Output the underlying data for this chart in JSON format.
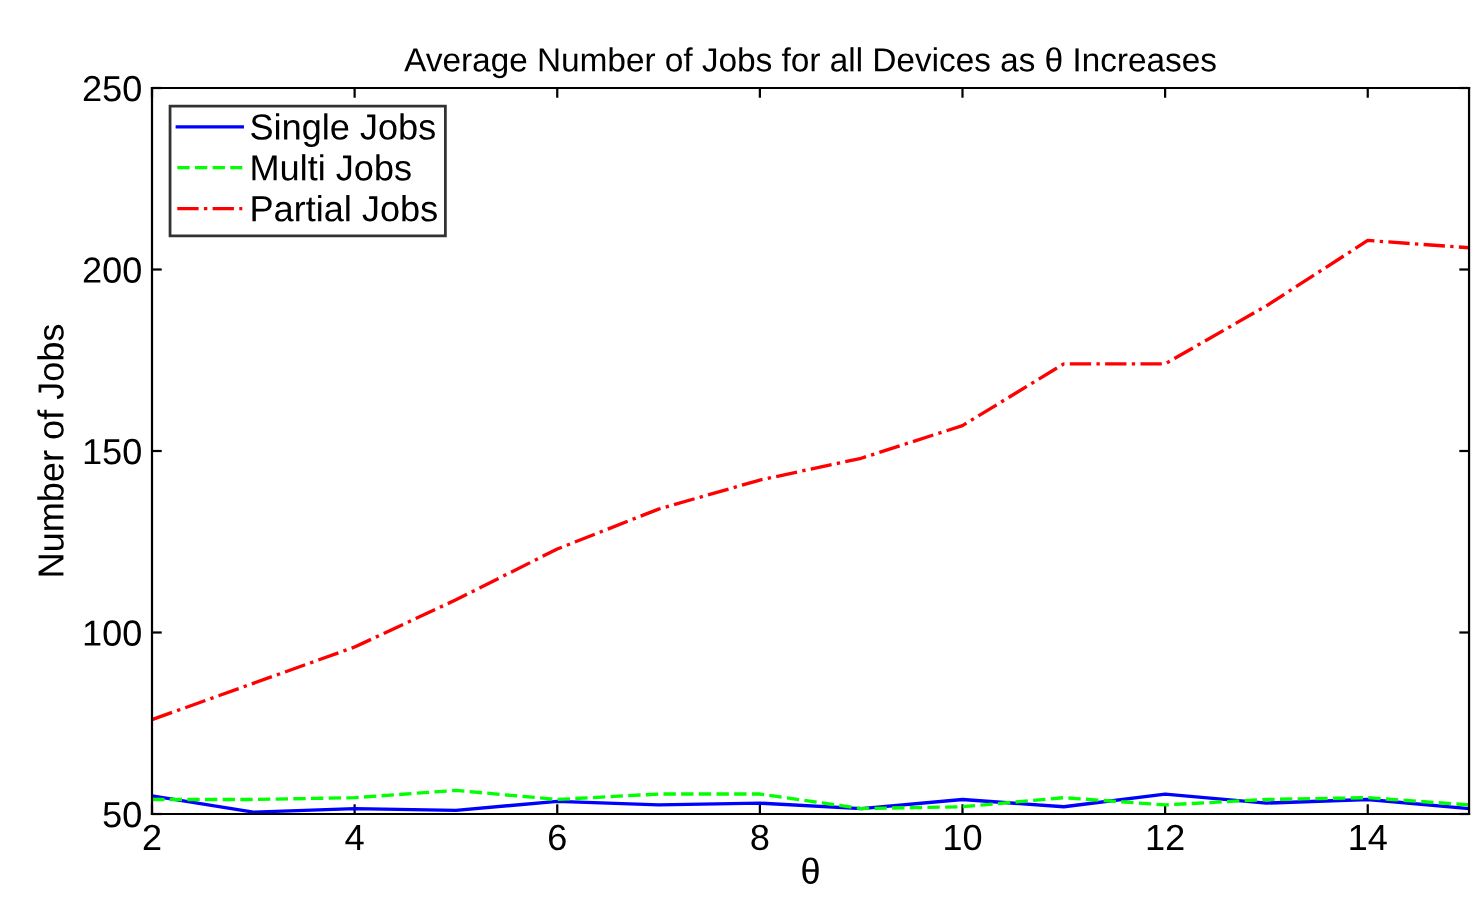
{
  "chart_data": {
    "type": "line",
    "title": "Average Number of Jobs for all Devices as θ Increases",
    "xlabel": "θ",
    "ylabel": "Number of Jobs",
    "x": [
      2,
      3,
      4,
      5,
      6,
      7,
      8,
      9,
      10,
      11,
      12,
      13,
      14,
      15
    ],
    "xlim": [
      2,
      15
    ],
    "xticks": [
      2,
      4,
      6,
      8,
      10,
      12,
      14
    ],
    "ylim": [
      50,
      250
    ],
    "yticks": [
      50,
      100,
      150,
      200,
      250
    ],
    "grid": false,
    "legend": "top left",
    "marker": "none",
    "series": [
      {
        "name": "Single Jobs",
        "color": "#0000ff",
        "line_style": "solid",
        "values": [
          55,
          50.5,
          51.5,
          51,
          53.5,
          52.5,
          53,
          51.5,
          54,
          52,
          55.5,
          53,
          54,
          51.5
        ]
      },
      {
        "name": "Multi Jobs",
        "color": "#00ff00",
        "line_style": "dashed",
        "values": [
          54,
          54,
          54.5,
          56.5,
          54,
          55.5,
          55.5,
          51.5,
          52,
          54.5,
          52.5,
          54,
          54.5,
          52.5
        ]
      },
      {
        "name": "Partial Jobs",
        "color": "#ff0000",
        "line_style": "dashdot",
        "values": [
          76,
          86,
          96,
          109,
          123,
          134,
          142,
          148,
          157,
          174,
          174,
          190,
          208,
          206
        ]
      }
    ]
  }
}
